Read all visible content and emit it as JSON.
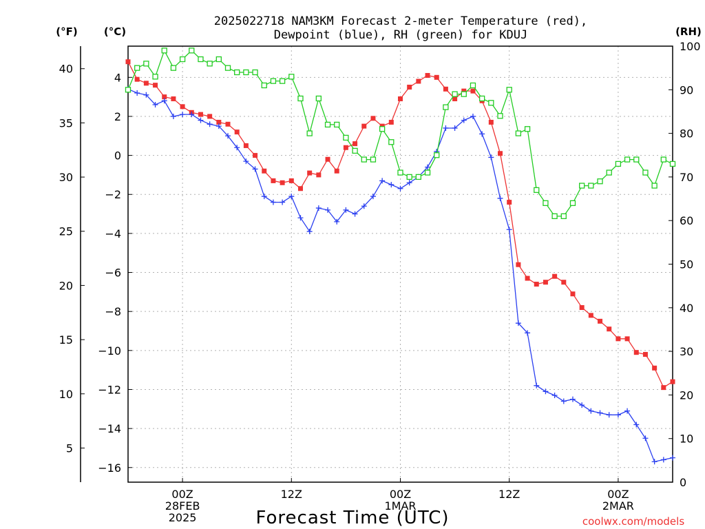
{
  "chart_data": {
    "type": "line",
    "title": "2025022718 NAM3KM Forecast 2-meter Temperature (red),",
    "subtitle": "Dewpoint (blue), RH (green) for KDUJ",
    "xlabel": "Forecast Time (UTC)",
    "unit_labels": {
      "fahrenheit": "(°F)",
      "celsius": "(°C)",
      "rh": "(RH)"
    },
    "credit": "coolwx.com/models",
    "x_tick_labels": [
      {
        "hour": 6,
        "lines": [
          "00Z",
          "28FEB",
          "2025"
        ]
      },
      {
        "hour": 18,
        "lines": [
          "12Z"
        ]
      },
      {
        "hour": 30,
        "lines": [
          "00Z",
          "1MAR"
        ]
      },
      {
        "hour": 42,
        "lines": [
          "12Z"
        ]
      },
      {
        "hour": 54,
        "lines": [
          "00Z",
          "2MAR"
        ]
      }
    ],
    "x_range_hours": [
      0,
      60
    ],
    "celsius_ticks": [
      -16,
      -14,
      -12,
      -10,
      -8,
      -6,
      -4,
      -2,
      0,
      2,
      4
    ],
    "fahrenheit_ticks": [
      5,
      10,
      15,
      20,
      25,
      30,
      35,
      40
    ],
    "rh_ticks": [
      0,
      10,
      20,
      30,
      40,
      50,
      60,
      70,
      80,
      90,
      100
    ],
    "y_range_c": [
      -16.75,
      5.6
    ],
    "grid": true,
    "colors": {
      "temperature": "#ee3333",
      "dewpoint": "#2a3ff0",
      "rh": "#22cc22"
    },
    "series": [
      {
        "name": "Temperature",
        "axis": "celsius",
        "marker": "filled-square",
        "hours": [
          0,
          1,
          2,
          3,
          4,
          5,
          6,
          7,
          8,
          9,
          10,
          11,
          12,
          13,
          14,
          15,
          16,
          17,
          18,
          19,
          20,
          21,
          22,
          23,
          24,
          25,
          26,
          27,
          28,
          29,
          30,
          31,
          32,
          33,
          34,
          35,
          36,
          37,
          38,
          39,
          40,
          41,
          42,
          43,
          44,
          45,
          46,
          47,
          48,
          49,
          50,
          51,
          52,
          53,
          54,
          55,
          56,
          57,
          58,
          59,
          60
        ],
        "values": [
          4.8,
          3.9,
          3.7,
          3.6,
          3.0,
          2.9,
          2.5,
          2.2,
          2.1,
          2.0,
          1.7,
          1.6,
          1.2,
          0.5,
          0.0,
          -0.8,
          -1.3,
          -1.4,
          -1.3,
          -1.7,
          -0.9,
          -1.0,
          -0.2,
          -0.8,
          0.4,
          0.6,
          1.5,
          1.9,
          1.5,
          1.7,
          2.9,
          3.5,
          3.8,
          4.1,
          4.0,
          3.4,
          2.9,
          3.3,
          3.3,
          2.8,
          1.7,
          0.1,
          -2.4,
          -5.6,
          -6.3,
          -6.6,
          -6.5,
          -6.2,
          -6.5,
          -7.1,
          -7.8,
          -8.2,
          -8.5,
          -8.9,
          -9.4,
          -9.4,
          -10.1,
          -10.2,
          -10.9,
          -11.9,
          -11.6
        ]
      },
      {
        "name": "Dewpoint",
        "axis": "celsius",
        "marker": "plus",
        "hours": [
          0,
          1,
          2,
          3,
          4,
          5,
          6,
          7,
          8,
          9,
          10,
          11,
          12,
          13,
          14,
          15,
          16,
          17,
          18,
          19,
          20,
          21,
          22,
          23,
          24,
          25,
          26,
          27,
          28,
          29,
          30,
          31,
          32,
          33,
          34,
          35,
          36,
          37,
          38,
          39,
          40,
          41,
          42,
          43,
          44,
          45,
          46,
          47,
          48,
          49,
          50,
          51,
          52,
          53,
          54,
          55,
          56,
          57,
          58,
          59,
          60
        ],
        "values": [
          3.4,
          3.2,
          3.1,
          2.6,
          2.8,
          2.0,
          2.1,
          2.1,
          1.8,
          1.6,
          1.5,
          1.0,
          0.4,
          -0.3,
          -0.7,
          -2.1,
          -2.4,
          -2.4,
          -2.1,
          -3.2,
          -3.9,
          -2.7,
          -2.8,
          -3.4,
          -2.8,
          -3.0,
          -2.6,
          -2.1,
          -1.3,
          -1.5,
          -1.7,
          -1.4,
          -1.1,
          -0.6,
          0.2,
          1.4,
          1.4,
          1.8,
          2.0,
          1.1,
          -0.1,
          -2.2,
          -3.8,
          -8.6,
          -9.1,
          -11.8,
          -12.1,
          -12.3,
          -12.6,
          -12.5,
          -12.8,
          -13.1,
          -13.2,
          -13.3,
          -13.3,
          -13.1,
          -13.8,
          -14.5,
          -15.7,
          -15.6,
          -15.5
        ]
      },
      {
        "name": "RH",
        "axis": "rh",
        "marker": "open-square",
        "hours": [
          0,
          1,
          2,
          3,
          4,
          5,
          6,
          7,
          8,
          9,
          10,
          11,
          12,
          13,
          14,
          15,
          16,
          17,
          18,
          19,
          20,
          21,
          22,
          23,
          24,
          25,
          26,
          27,
          28,
          29,
          30,
          31,
          32,
          33,
          34,
          35,
          36,
          37,
          38,
          39,
          40,
          41,
          42,
          43,
          44,
          45,
          46,
          47,
          48,
          49,
          50,
          51,
          52,
          53,
          54,
          55,
          56,
          57,
          58,
          59,
          60
        ],
        "values": [
          90,
          95,
          96,
          93,
          99,
          95,
          97,
          99,
          97,
          96,
          97,
          95,
          94,
          94,
          94,
          91,
          92,
          92,
          93,
          88,
          80,
          88,
          82,
          82,
          79,
          76,
          74,
          74,
          81,
          78,
          71,
          70,
          70,
          71,
          75,
          86,
          89,
          89,
          91,
          88,
          87,
          84,
          90,
          80,
          81,
          67,
          64,
          61,
          61,
          64,
          68,
          68,
          69,
          71,
          73,
          74,
          74,
          71,
          68,
          74,
          73
        ]
      }
    ]
  }
}
